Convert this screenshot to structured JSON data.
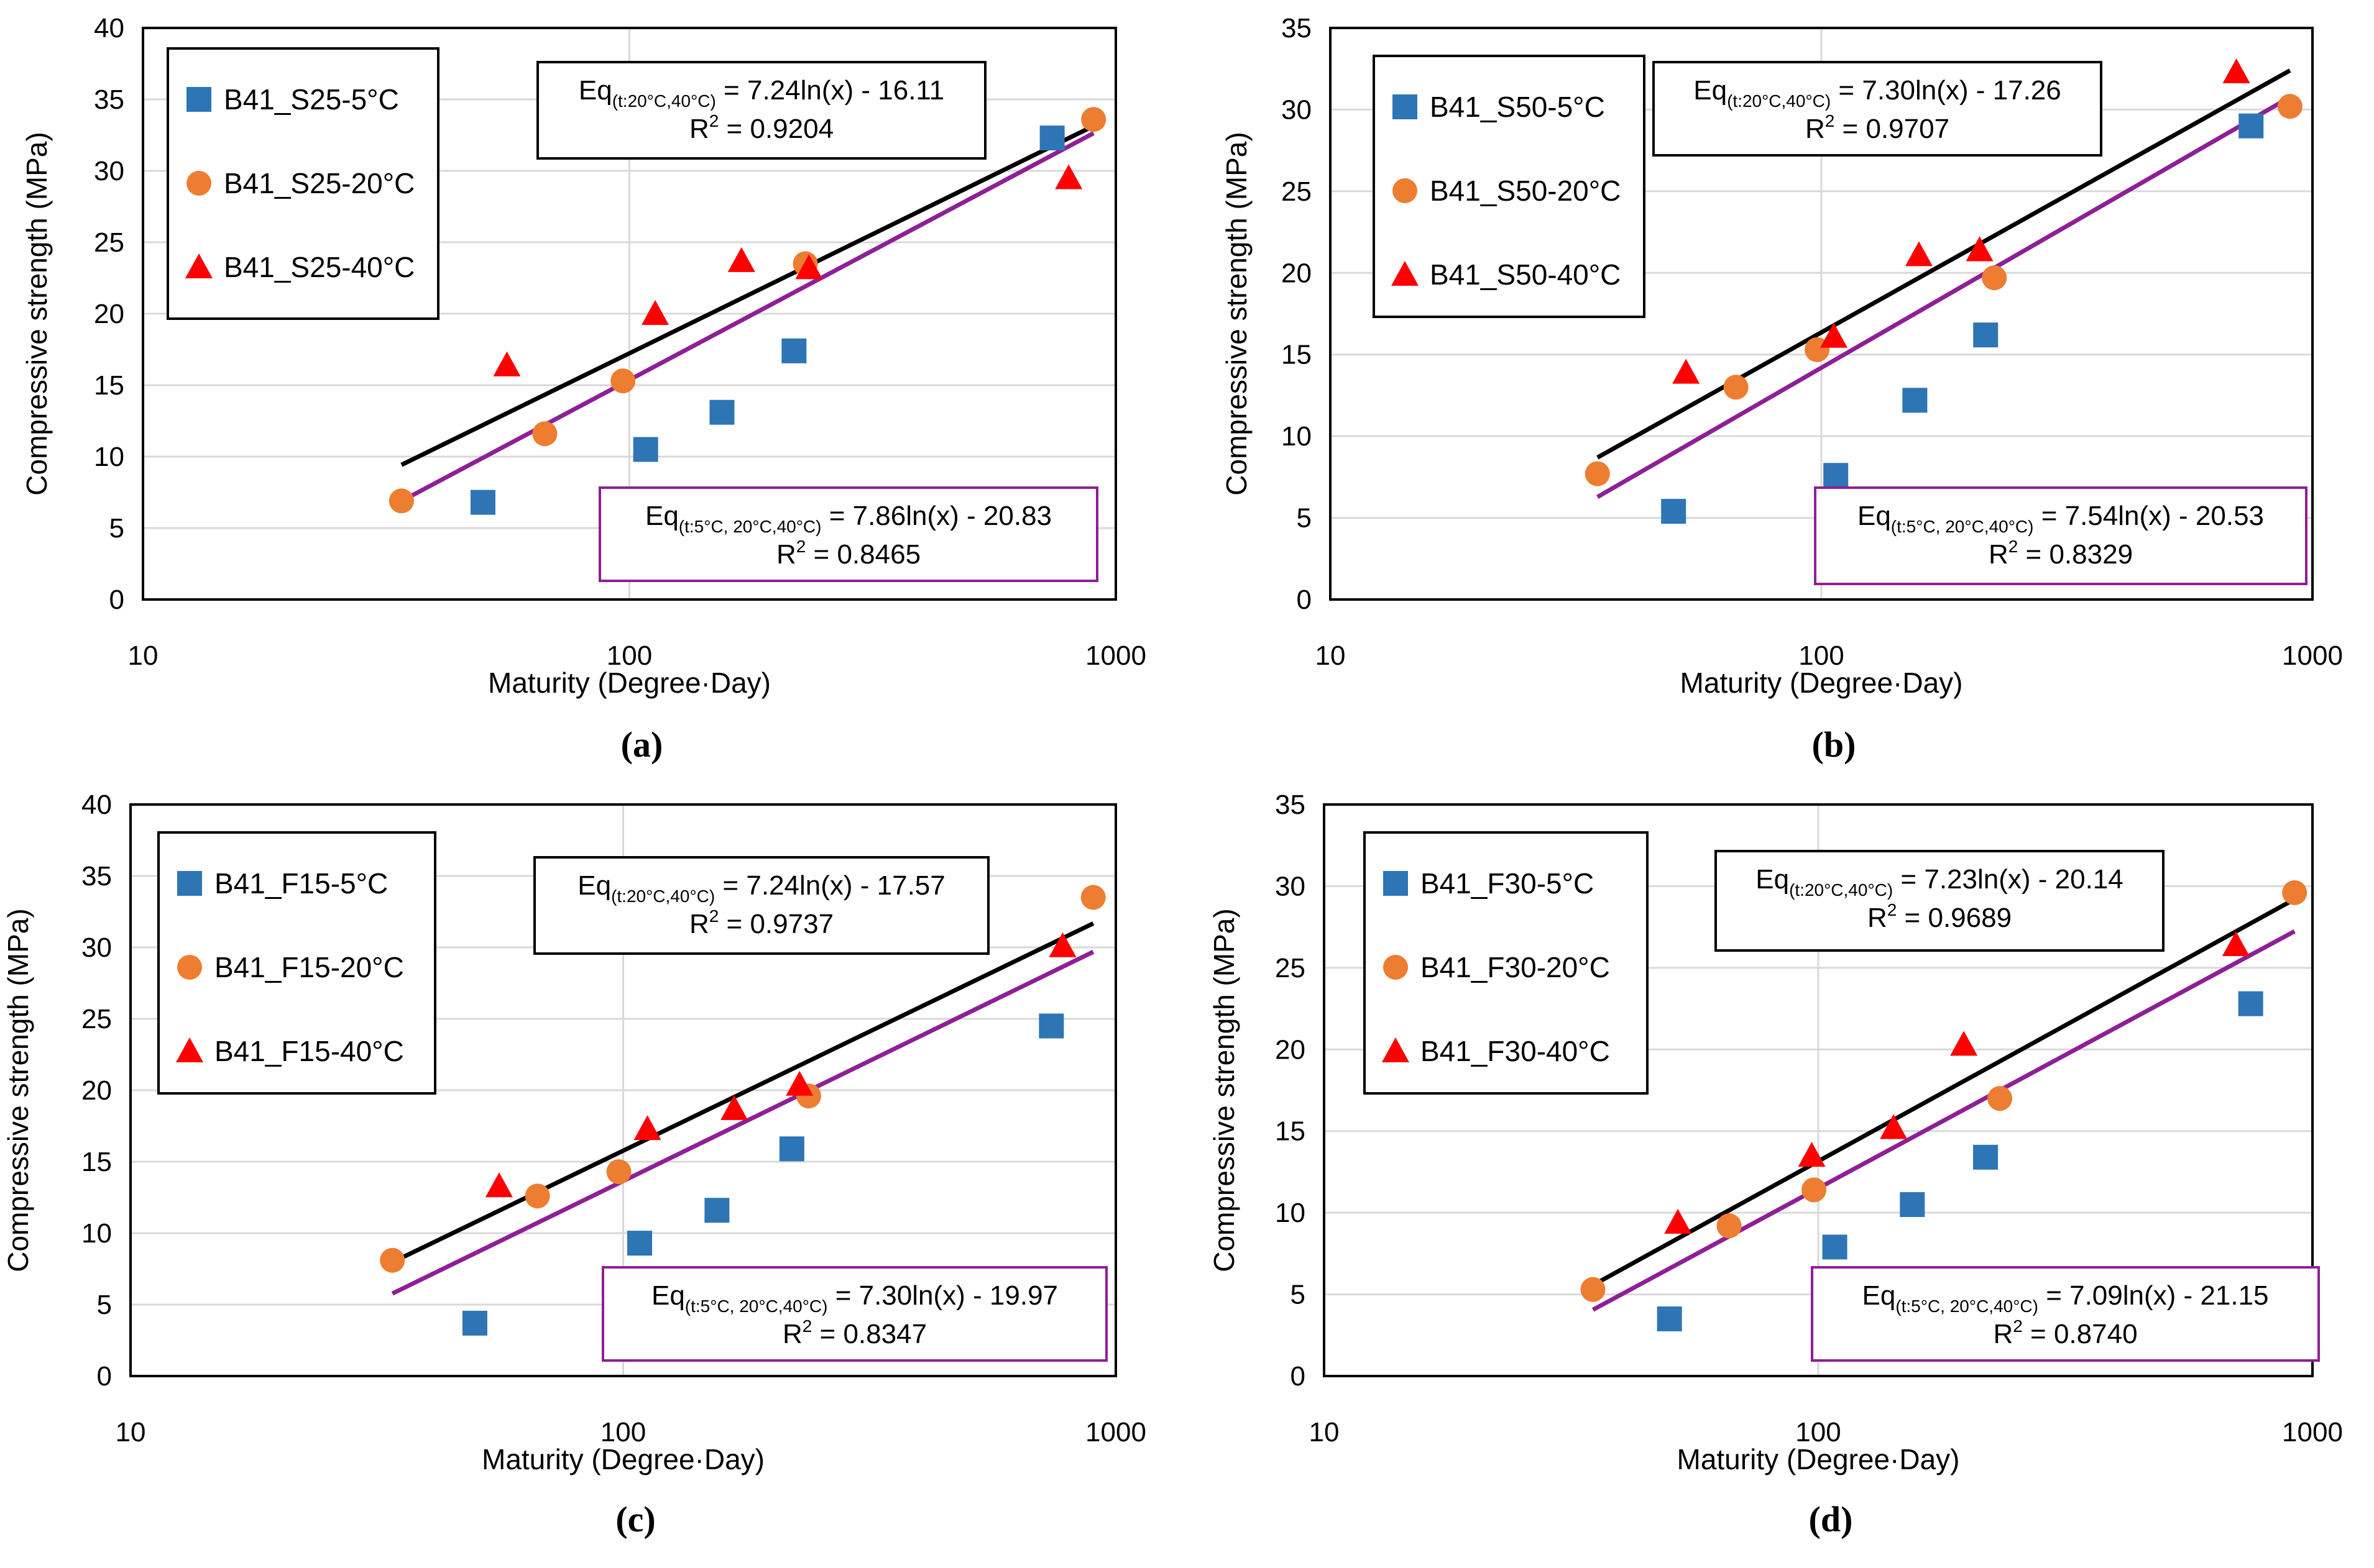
{
  "colors": {
    "series_5C": "#2E75B6",
    "series_20C": "#ED7D31",
    "series_40C": "#FF0000",
    "fit_20_40": "#000000",
    "fit_all": "#8E1F96",
    "grid": "#D9D9D9",
    "axis": "#000000",
    "box_all_border": "#8E1F96"
  },
  "chart_data": [
    {
      "type": "scatter",
      "panel_label": "(a)",
      "xscale": "log",
      "xlim": [
        10,
        1000
      ],
      "ylim": [
        0,
        40
      ],
      "ystep": 5,
      "xticks": [
        "10",
        "100",
        "1000"
      ],
      "yticks": [
        "0",
        "5",
        "10",
        "15",
        "20",
        "25",
        "30",
        "35",
        "40"
      ],
      "xlabel": "Maturity (Degree·Day)",
      "ylabel": "Compressive strength (MPa)",
      "legend_position": "top-left",
      "series": [
        {
          "name": "B41_S25-5°C",
          "marker": "square",
          "x": [
            50,
            108,
            155,
            218,
            740
          ],
          "y": [
            6.8,
            10.5,
            13.1,
            17.4,
            32.3
          ]
        },
        {
          "name": "B41_S25-20°C",
          "marker": "circle",
          "x": [
            34,
            67,
            97,
            230,
            900
          ],
          "y": [
            6.9,
            11.6,
            15.3,
            23.5,
            33.6
          ]
        },
        {
          "name": "B41_S25-40°C",
          "marker": "triangle",
          "x": [
            56,
            113,
            170,
            234,
            800
          ],
          "y": [
            16.4,
            20.0,
            23.7,
            23.2,
            29.5
          ]
        }
      ],
      "fits": [
        {
          "name": "fit_20_40",
          "a": 7.24,
          "b": -16.11,
          "x_range": [
            34,
            900
          ]
        },
        {
          "name": "fit_all",
          "a": 7.86,
          "b": -20.83,
          "x_range": [
            34,
            900
          ]
        }
      ],
      "equations": [
        {
          "eq_prefix": "Eq",
          "eq_sub": "(t:20°C,40°C)",
          "eq_rhs": " = 7.24ln(x) - 16.11",
          "r2_label": "R",
          "r2_sup": "2",
          "r2_value": " = 0.9204"
        },
        {
          "eq_prefix": "Eq",
          "eq_sub": "(t:5°C, 20°C,40°C)",
          "eq_rhs": " = 7.86ln(x) - 20.83",
          "r2_label": "R",
          "r2_sup": "2",
          "r2_value": " = 0.8465"
        }
      ]
    },
    {
      "type": "scatter",
      "panel_label": "(b)",
      "xscale": "log",
      "xlim": [
        10,
        1000
      ],
      "ylim": [
        0,
        35
      ],
      "ystep": 5,
      "xticks": [
        "10",
        "100",
        "1000"
      ],
      "yticks": [
        "0",
        "5",
        "10",
        "15",
        "20",
        "25",
        "30",
        "35"
      ],
      "xlabel": "Maturity (Degree·Day)",
      "ylabel": "Compressive strength (MPa)",
      "legend_position": "top-left",
      "series": [
        {
          "name": "B41_S50-5°C",
          "marker": "square",
          "x": [
            50,
            107,
            155,
            216,
            750
          ],
          "y": [
            5.4,
            7.6,
            12.2,
            16.2,
            29.0
          ]
        },
        {
          "name": "B41_S50-20°C",
          "marker": "circle",
          "x": [
            35,
            67,
            98,
            225,
            900
          ],
          "y": [
            7.7,
            13.0,
            15.3,
            19.7,
            30.2
          ]
        },
        {
          "name": "B41_S50-40°C",
          "marker": "triangle",
          "x": [
            53,
            106,
            158,
            210,
            700
          ],
          "y": [
            13.9,
            16.1,
            21.1,
            21.4,
            32.3
          ]
        }
      ],
      "fits": [
        {
          "name": "fit_20_40",
          "a": 7.3,
          "b": -17.26,
          "x_range": [
            35,
            900
          ]
        },
        {
          "name": "fit_all",
          "a": 7.54,
          "b": -20.53,
          "x_range": [
            35,
            900
          ]
        }
      ],
      "equations": [
        {
          "eq_prefix": "Eq",
          "eq_sub": "(t:20°C,40°C)",
          "eq_rhs": " = 7.30ln(x) - 17.26",
          "r2_label": "R",
          "r2_sup": "2",
          "r2_value": " = 0.9707"
        },
        {
          "eq_prefix": "Eq",
          "eq_sub": "(t:5°C, 20°C,40°C)",
          "eq_rhs": " = 7.54ln(x) - 20.53",
          "r2_label": "R",
          "r2_sup": "2",
          "r2_value": " = 0.8329"
        }
      ]
    },
    {
      "type": "scatter",
      "panel_label": "(c)",
      "xscale": "log",
      "xlim": [
        10,
        1000
      ],
      "ylim": [
        0,
        40
      ],
      "ystep": 5,
      "xticks": [
        "10",
        "100",
        "1000"
      ],
      "yticks": [
        "0",
        "5",
        "10",
        "15",
        "20",
        "25",
        "30",
        "35",
        "40"
      ],
      "xlabel": "Maturity (Degree·Day)",
      "ylabel": "Compressive strength (MPa)",
      "legend_position": "top-left",
      "series": [
        {
          "name": "B41_F15-5°C",
          "marker": "square",
          "x": [
            50,
            108,
            155,
            220,
            740
          ],
          "y": [
            3.7,
            9.3,
            11.6,
            15.9,
            24.5
          ]
        },
        {
          "name": "B41_F15-20°C",
          "marker": "circle",
          "x": [
            34,
            67,
            98,
            238,
            900
          ],
          "y": [
            8.1,
            12.6,
            14.3,
            19.6,
            33.5
          ]
        },
        {
          "name": "B41_F15-40°C",
          "marker": "triangle",
          "x": [
            56,
            112,
            168,
            228,
            780
          ],
          "y": [
            13.3,
            17.3,
            18.7,
            20.4,
            30.1
          ]
        }
      ],
      "fits": [
        {
          "name": "fit_20_40",
          "a": 7.24,
          "b": -17.57,
          "x_range": [
            34,
            900
          ]
        },
        {
          "name": "fit_all",
          "a": 7.3,
          "b": -19.97,
          "x_range": [
            34,
            900
          ]
        }
      ],
      "equations": [
        {
          "eq_prefix": "Eq",
          "eq_sub": "(t:20°C,40°C)",
          "eq_rhs": " = 7.24ln(x) - 17.57",
          "r2_label": "R",
          "r2_sup": "2",
          "r2_value": " = 0.9737"
        },
        {
          "eq_prefix": "Eq",
          "eq_sub": "(t:5°C, 20°C,40°C)",
          "eq_rhs": " = 7.30ln(x) - 19.97",
          "r2_label": "R",
          "r2_sup": "2",
          "r2_value": " = 0.8347"
        }
      ]
    },
    {
      "type": "scatter",
      "panel_label": "(d)",
      "xscale": "log",
      "xlim": [
        10,
        1000
      ],
      "ylim": [
        0,
        35
      ],
      "ystep": 5,
      "xticks": [
        "10",
        "100",
        "1000"
      ],
      "yticks": [
        "0",
        "5",
        "10",
        "15",
        "20",
        "25",
        "30",
        "35"
      ],
      "xlabel": "Maturity (Degree·Day)",
      "ylabel": "Compressive strength (MPa)",
      "legend_position": "top-left",
      "series": [
        {
          "name": "B41_F30-5°C",
          "marker": "square",
          "x": [
            50,
            108,
            155,
            218,
            750
          ],
          "y": [
            3.5,
            7.9,
            10.5,
            13.4,
            22.8
          ]
        },
        {
          "name": "B41_F30-20°C",
          "marker": "circle",
          "x": [
            35,
            66,
            98,
            233,
            920
          ],
          "y": [
            5.3,
            9.2,
            11.4,
            17.0,
            29.6
          ]
        },
        {
          "name": "B41_F30-40°C",
          "marker": "triangle",
          "x": [
            52,
            97,
            142,
            197,
            700
          ],
          "y": [
            9.4,
            13.5,
            15.2,
            20.3,
            26.4
          ]
        }
      ],
      "fits": [
        {
          "name": "fit_20_40",
          "a": 7.23,
          "b": -20.14,
          "x_range": [
            35,
            920
          ]
        },
        {
          "name": "fit_all",
          "a": 7.09,
          "b": -21.15,
          "x_range": [
            35,
            920
          ]
        }
      ],
      "equations": [
        {
          "eq_prefix": "Eq",
          "eq_sub": "(t:20°C,40°C)",
          "eq_rhs": " = 7.23ln(x) - 20.14",
          "r2_label": "R",
          "r2_sup": "2",
          "r2_value": " = 0.9689"
        },
        {
          "eq_prefix": "Eq",
          "eq_sub": "(t:5°C, 20°C,40°C)",
          "eq_rhs": " = 7.09ln(x) - 21.15",
          "r2_label": "R",
          "r2_sup": "2",
          "r2_value": " = 0.8740"
        }
      ]
    }
  ]
}
